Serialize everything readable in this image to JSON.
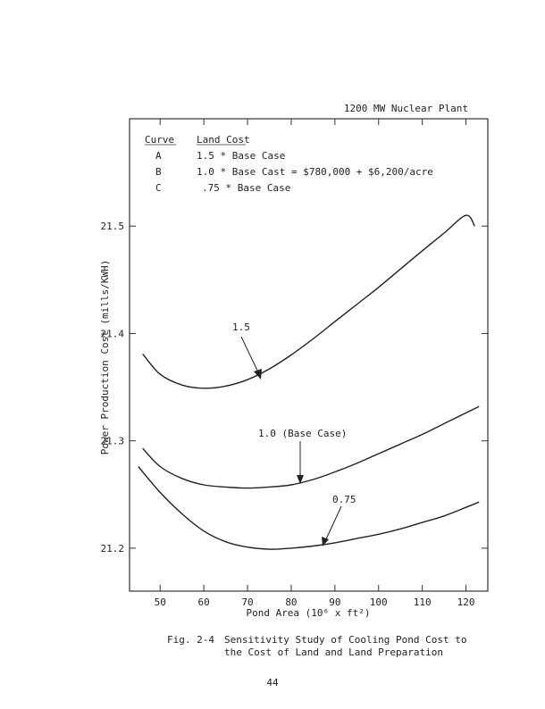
{
  "chart_data": {
    "type": "line",
    "title": "1200 MW Nuclear Plant",
    "xlabel": "Pond Area (10⁶ x ft²)",
    "ylabel": "Power Production Cost (mills/KWH)",
    "xlim": [
      43,
      125
    ],
    "ylim": [
      21.16,
      21.6
    ],
    "x_ticks": [
      50,
      60,
      70,
      80,
      90,
      100,
      110,
      120
    ],
    "x_tick_labels": [
      "50",
      "60",
      "70",
      "80",
      "90",
      "100",
      "110",
      "120"
    ],
    "y_ticks": [
      21.2,
      21.3,
      21.4,
      21.5
    ],
    "y_tick_labels": [
      "21.2",
      "21.3",
      "21.4",
      "21.5"
    ],
    "legend": {
      "header": [
        "Curve",
        "Land Cost"
      ],
      "rows": [
        [
          "A",
          "1.5 * Base Case"
        ],
        [
          "B",
          "1.0 * Base Cast = $780,000 + $6,200/acre"
        ],
        [
          "C",
          ".75 * Base Case"
        ]
      ]
    },
    "series": [
      {
        "name": "1.5",
        "x": [
          46,
          50,
          55,
          60,
          65,
          70,
          75,
          80,
          85,
          90,
          95,
          100,
          105,
          110,
          115,
          120,
          122
        ],
        "y": [
          21.381,
          21.362,
          21.352,
          21.349,
          21.351,
          21.357,
          21.367,
          21.38,
          21.395,
          21.411,
          21.427,
          21.443,
          21.46,
          21.477,
          21.4935,
          21.51,
          21.5
        ]
      },
      {
        "name": "1.0 (Base Case)",
        "x": [
          46,
          50,
          55,
          60,
          65,
          70,
          75,
          80,
          85,
          90,
          95,
          100,
          105,
          110,
          115,
          120,
          123
        ],
        "y": [
          21.293,
          21.276,
          21.265,
          21.259,
          21.257,
          21.256,
          21.257,
          21.259,
          21.264,
          21.271,
          21.279,
          21.288,
          21.297,
          21.306,
          21.316,
          21.326,
          21.332
        ]
      },
      {
        "name": "0.75",
        "x": [
          45,
          50,
          55,
          60,
          65,
          70,
          75,
          80,
          85,
          90,
          95,
          100,
          105,
          110,
          115,
          120,
          123
        ],
        "y": [
          21.276,
          21.252,
          21.232,
          21.216,
          21.206,
          21.201,
          21.199,
          21.2,
          21.202,
          21.205,
          21.209,
          21.213,
          21.218,
          21.224,
          21.23,
          21.238,
          21.243
        ]
      }
    ],
    "annotations": [
      {
        "text": "1.5",
        "series": 0,
        "arrow_to_x": 71
      },
      {
        "text": "1.0 (Base Case)",
        "series": 1,
        "arrow_to_x": 81
      },
      {
        "text": "0.75",
        "series": 2,
        "arrow_to_x": 87
      }
    ]
  },
  "caption": {
    "label": "Fig. 2-4",
    "line1": "Sensitivity Study of Cooling Pond Cost to",
    "line2": "the Cost of Land and Land Preparation"
  },
  "page_number": "44"
}
